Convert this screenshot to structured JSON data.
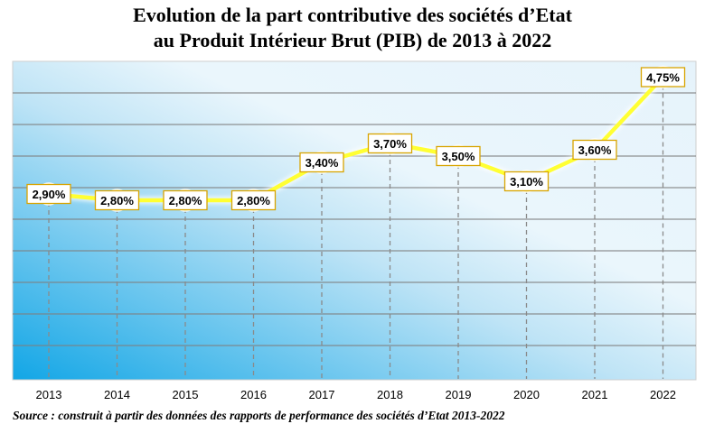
{
  "colors": {
    "plot_bg_light": "#e6f3fb",
    "plot_bg_dark": "#12a6e6",
    "line": "#ffff33",
    "grid": "#7f7f7f",
    "label_border": "#d8a400"
  },
  "chart_data": {
    "type": "line",
    "title": "Evolution  de  la part contributive des sociétés  d’Etat",
    "subtitle": "au  Produit Intérieur Brut (PIB) de 2013 à 2022",
    "xlabel": "",
    "ylabel": "",
    "categories": [
      "2013",
      "2014",
      "2015",
      "2016",
      "2017",
      "2018",
      "2019",
      "2020",
      "2021",
      "2022"
    ],
    "values": [
      2.9,
      2.8,
      2.8,
      2.8,
      3.4,
      3.7,
      3.5,
      3.1,
      3.6,
      4.75
    ],
    "data_labels": [
      "2,90%",
      "2,80%",
      "2,80%",
      "2,80%",
      "3,40%",
      "3,70%",
      "3,50%",
      "3,10%",
      "3,60%",
      "4,75%"
    ],
    "ylim": [
      0,
      5
    ],
    "y_axis_labels_visible": false,
    "grid": true,
    "legend": "none"
  },
  "source_text": "Source : construit à partir des données des rapports de performance des sociétés d’Etat 2013-2022"
}
